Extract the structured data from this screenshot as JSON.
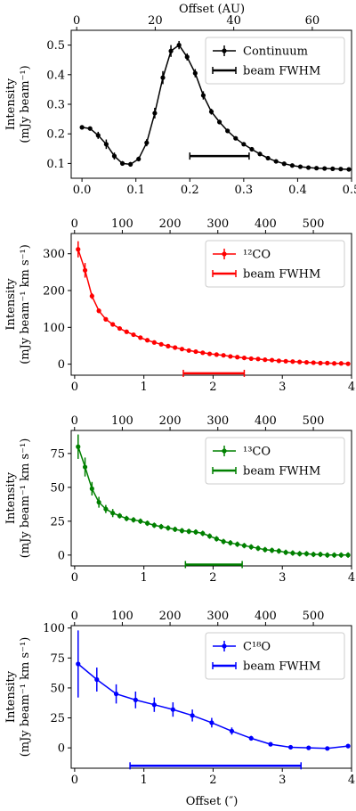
{
  "figure": {
    "top_xlabel": "Offset (AU)",
    "bottom_xlabel": "Offset (″)"
  },
  "chart_data": [
    {
      "type": "line",
      "name_key": "continuum",
      "color": "#000000",
      "ylabel_lines": [
        "Intensity",
        "(mJy beam⁻¹)"
      ],
      "xlim": [
        -0.02,
        0.5
      ],
      "ylim": [
        0.05,
        0.55
      ],
      "xticks": [
        0.0,
        0.1,
        0.2,
        0.3,
        0.4,
        0.5
      ],
      "xtick_labels": [
        "0.0",
        "0.1",
        "0.2",
        "0.3",
        "0.4",
        "0.5"
      ],
      "yticks": [
        0.1,
        0.2,
        0.3,
        0.4,
        0.5
      ],
      "ytick_labels": [
        "0.1",
        "0.2",
        "0.3",
        "0.4",
        "0.5"
      ],
      "top_xlim": [
        -1.4,
        70
      ],
      "top_xticks": [
        0,
        20,
        40,
        60
      ],
      "top_xtick_labels": [
        "0",
        "20",
        "40",
        "60"
      ],
      "legend": {
        "placement": "top-right",
        "entries": [
          "Continuum",
          "beam FWHM"
        ]
      },
      "beam": {
        "x_start": 0.2,
        "x_end": 0.31,
        "y": 0.125
      },
      "series": [
        {
          "name": "Continuum",
          "x": [
            0.0,
            0.015,
            0.03,
            0.045,
            0.06,
            0.075,
            0.09,
            0.105,
            0.12,
            0.135,
            0.15,
            0.165,
            0.18,
            0.195,
            0.21,
            0.225,
            0.24,
            0.255,
            0.27,
            0.285,
            0.3,
            0.315,
            0.33,
            0.345,
            0.36,
            0.375,
            0.39,
            0.405,
            0.42,
            0.435,
            0.45,
            0.465,
            0.48,
            0.495
          ],
          "y": [
            0.222,
            0.218,
            0.195,
            0.165,
            0.125,
            0.1,
            0.097,
            0.115,
            0.17,
            0.27,
            0.39,
            0.48,
            0.5,
            0.46,
            0.405,
            0.33,
            0.275,
            0.24,
            0.21,
            0.185,
            0.165,
            0.148,
            0.132,
            0.118,
            0.107,
            0.099,
            0.093,
            0.089,
            0.086,
            0.084,
            0.083,
            0.082,
            0.081,
            0.08
          ],
          "yerr": [
            0.006,
            0.006,
            0.012,
            0.016,
            0.012,
            0.008,
            0.008,
            0.008,
            0.012,
            0.018,
            0.022,
            0.02,
            0.014,
            0.012,
            0.014,
            0.014,
            0.01,
            0.008,
            0.006,
            0.005,
            0.005,
            0.004,
            0.004,
            0.004,
            0.003,
            0.003,
            0.003,
            0.003,
            0.003,
            0.003,
            0.003,
            0.003,
            0.003,
            0.003
          ]
        }
      ]
    },
    {
      "type": "line",
      "name_key": "co12",
      "color": "#ff0000",
      "ylabel_lines": [
        "Intensity",
        "(mJy beam⁻¹ km s⁻¹)"
      ],
      "xlim": [
        -0.05,
        4.0
      ],
      "ylim": [
        -30,
        355
      ],
      "xticks": [
        0,
        1,
        2,
        3,
        4
      ],
      "xtick_labels": [
        "0",
        "1",
        "2",
        "3",
        "4"
      ],
      "yticks": [
        0,
        100,
        200,
        300
      ],
      "ytick_labels": [
        "0",
        "100",
        "200",
        "300"
      ],
      "top_xlim": [
        -7,
        580
      ],
      "top_xticks": [
        0,
        100,
        200,
        300,
        400,
        500
      ],
      "top_xtick_labels": [
        "0",
        "100",
        "200",
        "300",
        "400",
        "500"
      ],
      "legend": {
        "placement": "top-right",
        "entries": [
          "¹²CO",
          "beam FWHM"
        ]
      },
      "beam": {
        "x_start": 1.57,
        "x_end": 2.45,
        "y": -25
      },
      "series": [
        {
          "name": "¹²CO",
          "x": [
            0.05,
            0.15,
            0.25,
            0.35,
            0.45,
            0.55,
            0.65,
            0.75,
            0.85,
            0.95,
            1.05,
            1.15,
            1.25,
            1.35,
            1.45,
            1.55,
            1.65,
            1.75,
            1.85,
            1.95,
            2.05,
            2.15,
            2.25,
            2.35,
            2.45,
            2.55,
            2.65,
            2.75,
            2.85,
            2.95,
            3.05,
            3.15,
            3.25,
            3.35,
            3.45,
            3.55,
            3.65,
            3.75,
            3.85,
            3.95
          ],
          "y": [
            312,
            255,
            185,
            145,
            122,
            108,
            97,
            88,
            80,
            72,
            65,
            59,
            54,
            49,
            45,
            41,
            37,
            34,
            31,
            28,
            26,
            24,
            21,
            19,
            17,
            15,
            14,
            12,
            11,
            9,
            8,
            7,
            6,
            5,
            4,
            3,
            3,
            2,
            2,
            1
          ],
          "yerr": [
            22,
            20,
            8,
            6,
            5,
            4,
            3,
            3,
            3,
            2,
            2,
            2,
            2,
            2,
            2,
            2,
            2,
            2,
            2,
            2,
            2,
            2,
            2,
            2,
            2,
            2,
            2,
            2,
            2,
            2,
            2,
            2,
            2,
            2,
            2,
            2,
            2,
            2,
            2,
            2
          ]
        }
      ]
    },
    {
      "type": "line",
      "name_key": "co13",
      "color": "#008000",
      "ylabel_lines": [
        "Intensity",
        "(mJy beam⁻¹ km s⁻¹)"
      ],
      "xlim": [
        -0.05,
        4.0
      ],
      "ylim": [
        -8,
        92
      ],
      "xticks": [
        0,
        1,
        2,
        3,
        4
      ],
      "xtick_labels": [
        "0",
        "1",
        "2",
        "3",
        "4"
      ],
      "yticks": [
        0,
        25,
        50,
        75
      ],
      "ytick_labels": [
        "0",
        "25",
        "50",
        "75"
      ],
      "top_xlim": [
        -7,
        580
      ],
      "top_xticks": [
        0,
        100,
        200,
        300,
        400,
        500
      ],
      "top_xtick_labels": [
        "0",
        "100",
        "200",
        "300",
        "400",
        "500"
      ],
      "legend": {
        "placement": "top-right",
        "entries": [
          "¹³CO",
          "beam FWHM"
        ]
      },
      "beam": {
        "x_start": 1.6,
        "x_end": 2.42,
        "y": -7
      },
      "series": [
        {
          "name": "¹³CO",
          "x": [
            0.05,
            0.15,
            0.25,
            0.35,
            0.45,
            0.55,
            0.65,
            0.75,
            0.85,
            0.95,
            1.05,
            1.15,
            1.25,
            1.35,
            1.45,
            1.55,
            1.65,
            1.75,
            1.85,
            1.95,
            2.05,
            2.15,
            2.25,
            2.35,
            2.45,
            2.55,
            2.65,
            2.75,
            2.85,
            2.95,
            3.05,
            3.15,
            3.25,
            3.35,
            3.45,
            3.55,
            3.65,
            3.75,
            3.85,
            3.95
          ],
          "y": [
            80,
            65,
            49,
            39,
            34,
            31,
            29,
            27,
            26,
            25,
            23.5,
            22,
            21,
            20,
            19,
            18,
            17.5,
            17,
            16,
            14,
            12,
            10,
            9,
            8,
            7,
            6,
            5,
            4,
            3.5,
            3,
            2,
            1.5,
            1,
            1,
            0.5,
            0.5,
            0,
            0,
            0,
            0
          ],
          "yerr": [
            9,
            7,
            5,
            4,
            3,
            3,
            2,
            2,
            2,
            2,
            2,
            2,
            2,
            2,
            2,
            2,
            2,
            2,
            2,
            2,
            2,
            2,
            2,
            2,
            2,
            2,
            2,
            2,
            2,
            2,
            2,
            2,
            2,
            2,
            2,
            2,
            2,
            2,
            2,
            2
          ]
        }
      ]
    },
    {
      "type": "line",
      "name_key": "c18o",
      "color": "#0000ff",
      "ylabel_lines": [
        "Intensity",
        "(mJy beam⁻¹ km s⁻¹)"
      ],
      "xlim": [
        -0.05,
        4.0
      ],
      "ylim": [
        -17,
        102
      ],
      "xticks": [
        0,
        1,
        2,
        3,
        4
      ],
      "xtick_labels": [
        "0",
        "1",
        "2",
        "3",
        "4"
      ],
      "yticks": [
        0,
        25,
        50,
        75,
        100
      ],
      "ytick_labels": [
        "0",
        "25",
        "50",
        "75",
        "100"
      ],
      "top_xlim": [
        -7,
        580
      ],
      "top_xticks": [
        0,
        100,
        200,
        300,
        400,
        500
      ],
      "top_xtick_labels": [
        "0",
        "100",
        "200",
        "300",
        "400",
        "500"
      ],
      "legend": {
        "placement": "top-right",
        "entries": [
          "C¹⁸O",
          "beam FWHM"
        ]
      },
      "beam": {
        "x_start": 0.8,
        "x_end": 3.27,
        "y": -15
      },
      "series": [
        {
          "name": "C¹⁸O",
          "x": [
            0.05,
            0.32,
            0.6,
            0.88,
            1.15,
            1.42,
            1.7,
            1.98,
            2.27,
            2.55,
            2.83,
            3.12,
            3.38,
            3.65,
            3.95
          ],
          "y": [
            70,
            57,
            45,
            40,
            36,
            32,
            27,
            21,
            14,
            8,
            3,
            0.5,
            0,
            -0.5,
            1.5
          ],
          "yerr": [
            28,
            10,
            8,
            7,
            6,
            6,
            5,
            4,
            3,
            2,
            1,
            0.5,
            0.5,
            0.5,
            0.5
          ]
        }
      ]
    }
  ]
}
